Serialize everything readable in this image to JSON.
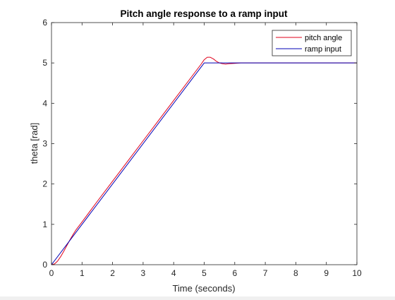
{
  "chart_data": {
    "type": "line",
    "title": "Pitch angle response to a ramp input",
    "xlabel": "Time (seconds)",
    "ylabel": "theta [rad]",
    "xlim": [
      0,
      10
    ],
    "ylim": [
      0,
      6
    ],
    "xticks": [
      "0",
      "1",
      "2",
      "3",
      "4",
      "5",
      "6",
      "7",
      "8",
      "9",
      "10"
    ],
    "yticks": [
      "0",
      "1",
      "2",
      "3",
      "4",
      "5",
      "6"
    ],
    "grid": false,
    "legend_position": "top-right",
    "series": [
      {
        "name": "pitch angle",
        "color": "#e0001b",
        "x": [
          0,
          0.1,
          0.2,
          0.3,
          0.4,
          0.5,
          0.6,
          0.7,
          0.8,
          1,
          1.5,
          2,
          2.5,
          3,
          3.5,
          4,
          4.5,
          4.9,
          5.0,
          5.1,
          5.2,
          5.3,
          5.4,
          5.5,
          5.6,
          5.7,
          5.8,
          6.0,
          6.2,
          6.5,
          7,
          8,
          9,
          10
        ],
        "y": [
          0,
          0.02,
          0.09,
          0.2,
          0.33,
          0.47,
          0.61,
          0.74,
          0.86,
          1.06,
          1.57,
          2.07,
          2.57,
          3.07,
          3.57,
          4.07,
          4.57,
          4.97,
          5.08,
          5.14,
          5.14,
          5.1,
          5.04,
          5.0,
          4.98,
          4.97,
          4.98,
          4.99,
          5.0,
          5.0,
          5.0,
          5.0,
          5.0,
          5.0
        ]
      },
      {
        "name": "ramp input",
        "color": "#0000b5",
        "x": [
          0,
          5,
          10
        ],
        "y": [
          0,
          5,
          5
        ]
      }
    ]
  }
}
